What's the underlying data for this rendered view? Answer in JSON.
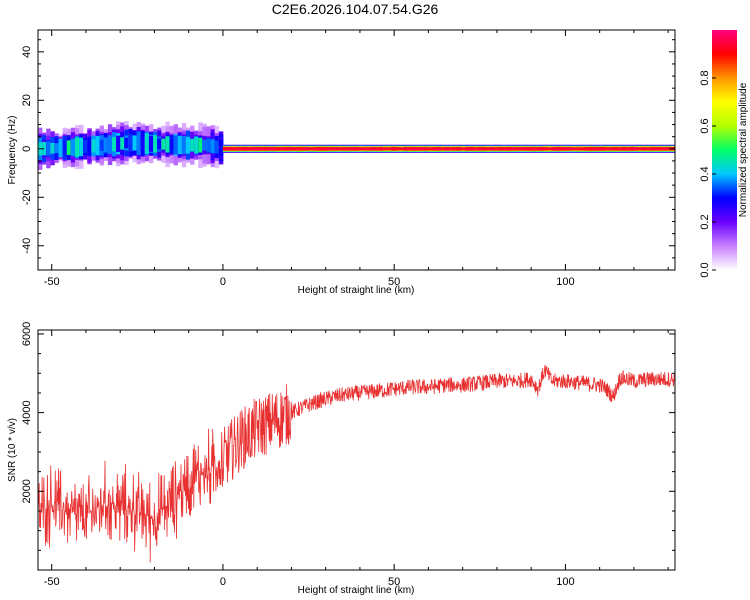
{
  "figure_title": "C2E6.2026.104.07.54.G26",
  "chart_data": [
    {
      "type": "heatmap",
      "title": "C2E6.2026.104.07.54.G26",
      "xlabel": "Height of straight line (km)",
      "ylabel": "Frequency (Hz)",
      "xlim": [
        -54,
        132
      ],
      "ylim": [
        -50,
        49
      ],
      "xticks": [
        -50,
        0,
        50,
        100
      ],
      "xtick_labels": [
        "-50",
        "0",
        "50",
        "100"
      ],
      "yticks": [
        -40,
        -20,
        0,
        20,
        40
      ],
      "ytick_labels": [
        "-40",
        "-20",
        "0",
        "20",
        "40"
      ],
      "colorbar": {
        "label": "Normalized spectral amplitude",
        "range": [
          0,
          1
        ],
        "ticks": [
          0.0,
          0.2,
          0.4,
          0.6,
          0.8
        ],
        "tick_labels": [
          "0.0",
          "0.2",
          "0.4",
          "0.6",
          "0.8"
        ],
        "colors": [
          "#ffffff",
          "#c880ff",
          "#6a00ff",
          "#0000ff",
          "#00c8ff",
          "#00ff64",
          "#b4ff00",
          "#ffff00",
          "#ff9600",
          "#ff0000",
          "#ff0080"
        ]
      },
      "band": {
        "description": "narrow high-amplitude band near 0 Hz",
        "center_frequency_hz": [
          [
            -54,
            0
          ],
          [
            -45,
            0.5
          ],
          [
            -35,
            1.5
          ],
          [
            -28,
            2.5
          ],
          [
            -20,
            2
          ],
          [
            -12,
            1.5
          ],
          [
            -5,
            1.5
          ],
          [
            0,
            0
          ]
        ],
        "segments": [
          {
            "x_start": -54,
            "x_end": 0,
            "amplitude": 0.45,
            "halfwidth_hz": 3.5
          },
          {
            "x_start": 0,
            "x_end": 132,
            "amplitude": 0.95,
            "halfwidth_hz": 1.0
          }
        ]
      }
    },
    {
      "type": "line",
      "title": "",
      "xlabel": "Height of straight line (km)",
      "ylabel": "SNR (10 * v/v)",
      "xlim": [
        -54,
        132
      ],
      "ylim": [
        0,
        6100
      ],
      "xticks": [
        -50,
        0,
        50,
        100
      ],
      "xtick_labels": [
        "-50",
        "0",
        "50",
        "100"
      ],
      "yticks": [
        2000,
        4000,
        6000
      ],
      "ytick_labels": [
        "2000",
        "4000",
        "6000"
      ],
      "series": [
        {
          "name": "SNR",
          "color": "#e83030",
          "x": [
            -54,
            -50,
            -45,
            -40,
            -35,
            -30,
            -25,
            -20,
            -15,
            -10,
            -5,
            0,
            5,
            10,
            15,
            20,
            25,
            30,
            35,
            40,
            45,
            50,
            55,
            60,
            65,
            70,
            75,
            80,
            85,
            90,
            92,
            94,
            96,
            100,
            105,
            110,
            112,
            114,
            116,
            120,
            125,
            132
          ],
          "values": [
            1400,
            1700,
            1500,
            1300,
            1700,
            1600,
            1500,
            1300,
            1700,
            2300,
            2500,
            2800,
            3300,
            3600,
            3800,
            4000,
            4200,
            4350,
            4450,
            4500,
            4550,
            4600,
            4650,
            4650,
            4700,
            4700,
            4750,
            4800,
            4800,
            4850,
            4600,
            5100,
            4800,
            4800,
            4750,
            4700,
            4600,
            4400,
            4900,
            4800,
            4850,
            4850
          ]
        }
      ]
    }
  ]
}
